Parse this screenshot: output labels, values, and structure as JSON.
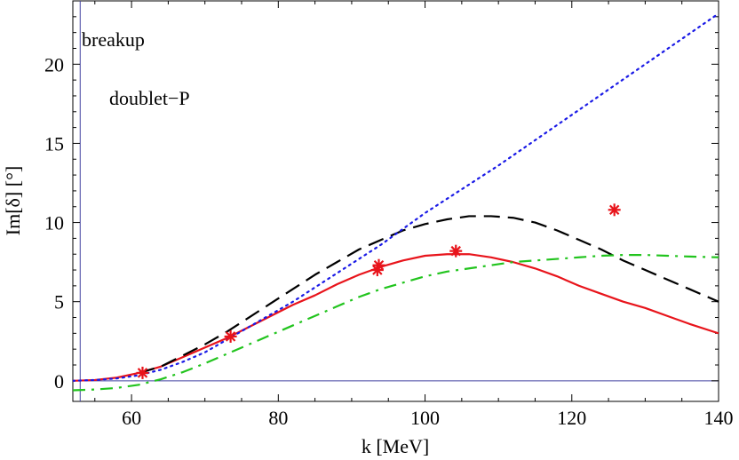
{
  "chart_data": {
    "type": "line",
    "title": "",
    "xlabel": "k [MeV]",
    "ylabel": "Im[δ] [°]",
    "xlim": [
      52,
      140
    ],
    "ylim": [
      -1.3,
      24
    ],
    "x_ticks": [
      60,
      80,
      100,
      120,
      140
    ],
    "y_ticks": [
      0,
      5,
      10,
      15,
      20
    ],
    "annotations": [
      "breakup",
      "doublet−P"
    ],
    "colors": {
      "red": "#e8141b",
      "black": "#000000",
      "blue": "#1a1ae6",
      "green": "#22c41e",
      "axis": "#4040a0"
    },
    "series": [
      {
        "name": "red-solid",
        "style": "solid",
        "color": "#e8141b",
        "x": [
          52,
          55,
          58,
          61,
          64,
          67,
          70,
          73,
          76,
          79,
          82,
          85,
          88,
          91,
          94,
          97,
          100,
          103,
          106,
          109,
          112,
          115,
          118,
          121,
          124,
          127,
          130,
          133,
          136,
          140
        ],
        "y": [
          0,
          0.05,
          0.2,
          0.5,
          0.9,
          1.5,
          2.1,
          2.7,
          3.4,
          4.1,
          4.8,
          5.4,
          6.1,
          6.7,
          7.2,
          7.6,
          7.9,
          8.0,
          8.0,
          7.8,
          7.5,
          7.1,
          6.6,
          6.0,
          5.5,
          5.0,
          4.6,
          4.1,
          3.6,
          3.0
        ]
      },
      {
        "name": "black-dashed",
        "style": "dashed",
        "color": "#000000",
        "x": [
          61,
          64,
          67,
          70,
          73,
          76,
          79,
          82,
          85,
          88,
          91,
          94,
          97,
          100,
          103,
          106,
          109,
          112,
          115,
          118,
          121,
          124,
          127,
          130,
          133,
          136,
          140
        ],
        "y": [
          0.5,
          0.9,
          1.6,
          2.3,
          3.1,
          4.0,
          4.9,
          5.8,
          6.7,
          7.5,
          8.3,
          8.9,
          9.5,
          9.9,
          10.2,
          10.4,
          10.4,
          10.3,
          10.0,
          9.5,
          8.9,
          8.3,
          7.6,
          7.0,
          6.4,
          5.8,
          5.0
        ]
      },
      {
        "name": "blue-dotted",
        "style": "dotted",
        "color": "#1a1ae6",
        "x": [
          52,
          55,
          58,
          61,
          64,
          67,
          70,
          73,
          76,
          79,
          82,
          85,
          88,
          91,
          94,
          97,
          100,
          105,
          110,
          115,
          120,
          125,
          130,
          135,
          140
        ],
        "y": [
          0,
          0.05,
          0.15,
          0.35,
          0.7,
          1.2,
          1.8,
          2.6,
          3.4,
          4.2,
          5.0,
          5.9,
          6.8,
          7.7,
          8.6,
          9.6,
          10.6,
          12.1,
          13.6,
          15.2,
          16.8,
          18.4,
          20.0,
          21.6,
          23.2
        ]
      },
      {
        "name": "green-dashdot",
        "style": "dashdot",
        "color": "#22c41e",
        "x": [
          52,
          55,
          58,
          61,
          64,
          67,
          70,
          73,
          76,
          79,
          82,
          85,
          88,
          91,
          94,
          97,
          100,
          103,
          106,
          109,
          112,
          115,
          118,
          121,
          124,
          127,
          130,
          133,
          136,
          140
        ],
        "y": [
          -0.6,
          -0.55,
          -0.45,
          -0.25,
          0.1,
          0.55,
          1.1,
          1.7,
          2.3,
          2.9,
          3.5,
          4.1,
          4.7,
          5.3,
          5.8,
          6.2,
          6.6,
          6.9,
          7.1,
          7.3,
          7.5,
          7.6,
          7.7,
          7.8,
          7.9,
          7.95,
          7.95,
          7.9,
          7.85,
          7.8
        ]
      },
      {
        "name": "data-stars",
        "style": "marker",
        "color": "#e8141b",
        "x": [
          61.5,
          73.5,
          93.5,
          93.7,
          104.2,
          125.8
        ],
        "y": [
          0.5,
          2.8,
          7.0,
          7.3,
          8.2,
          10.8
        ]
      }
    ]
  }
}
